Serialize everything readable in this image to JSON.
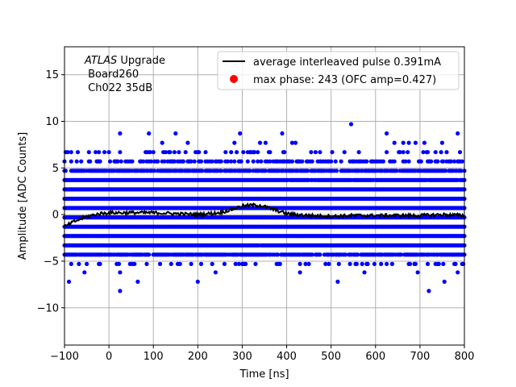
{
  "chart_data": {
    "type": "scatter",
    "xlabel": "Time [ns]",
    "ylabel": "Amplitude [ADC Counts]",
    "xlim": [
      -100,
      800
    ],
    "ylim": [
      -14,
      18
    ],
    "xticks": [
      -100,
      0,
      100,
      200,
      300,
      400,
      500,
      600,
      700,
      800
    ],
    "yticks": [
      -10,
      -5,
      0,
      5,
      10,
      15
    ],
    "grid": true,
    "legend_position": "top-right",
    "annotation": {
      "italic": "ATLAS",
      "line1_rest": " Upgrade",
      "line2": " Board260",
      "line3": " Ch022 35dB"
    },
    "legend": [
      {
        "label": "average interleaved pulse 0.391mA",
        "kind": "line",
        "color": "#000000"
      },
      {
        "label": "max phase: 243 (OFC amp=0.427)",
        "kind": "marker",
        "color": "#ff0000"
      }
    ],
    "samples": {
      "color": "#0000ff",
      "levels": [
        -8.2,
        -7.2,
        -6.2,
        -5.3,
        -4.3,
        -3.3,
        -2.3,
        -1.3,
        -0.3,
        0.7,
        1.7,
        2.7,
        3.7,
        4.7,
        5.7,
        6.7,
        7.7,
        8.7,
        9.7
      ],
      "x_step": 2.5,
      "outliers": [
        {
          "x": 25,
          "y": 8.7
        },
        {
          "x": 90,
          "y": 8.7
        },
        {
          "x": 150,
          "y": 8.7
        },
        {
          "x": 295,
          "y": 8.7
        },
        {
          "x": 390,
          "y": 8.7
        },
        {
          "x": 545,
          "y": 9.7
        },
        {
          "x": 625,
          "y": 8.7
        },
        {
          "x": 785,
          "y": 8.7
        },
        {
          "x": -90,
          "y": -7.2
        },
        {
          "x": 65,
          "y": -7.2
        },
        {
          "x": 200,
          "y": -7.2
        },
        {
          "x": 515,
          "y": -7.2
        },
        {
          "x": 755,
          "y": -7.2
        },
        {
          "x": 25,
          "y": -8.2
        },
        {
          "x": 720,
          "y": -8.2
        },
        {
          "x": -55,
          "y": -6.2
        },
        {
          "x": 25,
          "y": -6.2
        },
        {
          "x": 240,
          "y": -6.2
        },
        {
          "x": 430,
          "y": -6.2
        },
        {
          "x": 575,
          "y": -6.2
        },
        {
          "x": 695,
          "y": -6.2
        },
        {
          "x": 785,
          "y": -6.2
        }
      ]
    },
    "average_pulse": {
      "color": "#000000",
      "points": [
        {
          "x": -100,
          "y": -1.3
        },
        {
          "x": -80,
          "y": -0.8
        },
        {
          "x": -60,
          "y": -0.4
        },
        {
          "x": -40,
          "y": -0.1
        },
        {
          "x": -20,
          "y": 0.1
        },
        {
          "x": 0,
          "y": 0.2
        },
        {
          "x": 50,
          "y": 0.2
        },
        {
          "x": 100,
          "y": 0.2
        },
        {
          "x": 150,
          "y": 0.1
        },
        {
          "x": 200,
          "y": 0.0
        },
        {
          "x": 250,
          "y": 0.2
        },
        {
          "x": 280,
          "y": 0.6
        },
        {
          "x": 300,
          "y": 0.9
        },
        {
          "x": 320,
          "y": 1.0
        },
        {
          "x": 340,
          "y": 1.0
        },
        {
          "x": 360,
          "y": 0.7
        },
        {
          "x": 380,
          "y": 0.4
        },
        {
          "x": 400,
          "y": 0.1
        },
        {
          "x": 420,
          "y": 0.0
        },
        {
          "x": 450,
          "y": -0.1
        },
        {
          "x": 500,
          "y": -0.2
        },
        {
          "x": 550,
          "y": -0.1
        },
        {
          "x": 600,
          "y": -0.1
        },
        {
          "x": 650,
          "y": -0.1
        },
        {
          "x": 700,
          "y": -0.1
        },
        {
          "x": 750,
          "y": 0.0
        },
        {
          "x": 800,
          "y": -0.1
        }
      ]
    }
  }
}
